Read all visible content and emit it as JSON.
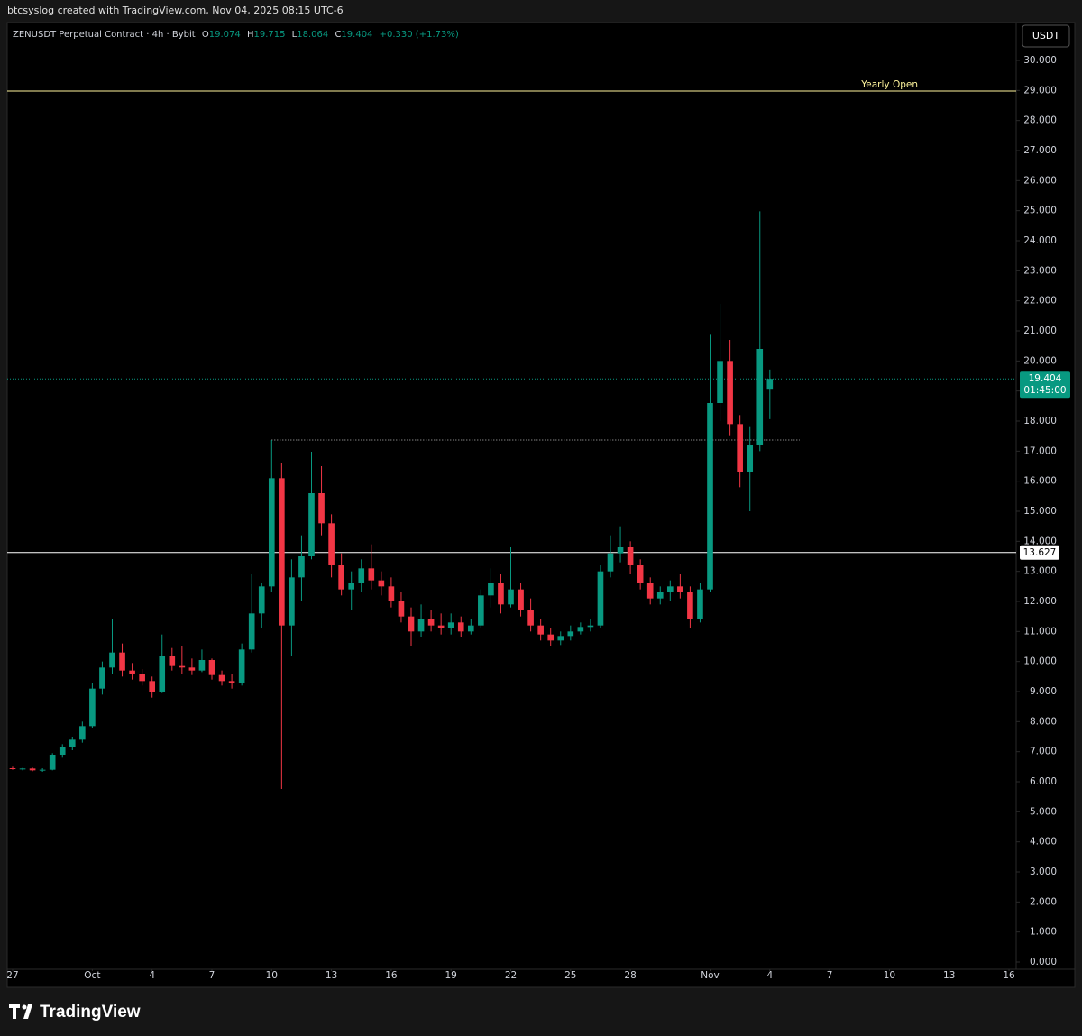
{
  "header": {
    "caption": "btcsyslog created with TradingView.com, Nov 04, 2025 08:15 UTC-6"
  },
  "footer": {
    "logo": "TradingView"
  },
  "chart_data": {
    "type": "candlestick",
    "symbol": "ZENUSDT Perpetual Contract · 4h · Bybit",
    "currency": "USDT",
    "legend": {
      "labels": [
        "O",
        "H",
        "L",
        "C"
      ],
      "values": [
        19.074,
        19.715,
        18.064,
        19.404
      ],
      "change": "+0.330 (+1.73%)"
    },
    "up_color": "#089981",
    "down_color": "#f23645",
    "grid": false,
    "x": [
      "2025-09-27 00:00",
      "2025-09-27 12:00",
      "2025-09-28 00:00",
      "2025-09-28 12:00",
      "2025-09-29 00:00",
      "2025-09-29 12:00",
      "2025-09-30 00:00",
      "2025-09-30 12:00",
      "2025-10-01 00:00",
      "2025-10-01 12:00",
      "2025-10-02 00:00",
      "2025-10-02 12:00",
      "2025-10-03 00:00",
      "2025-10-03 12:00",
      "2025-10-04 00:00",
      "2025-10-04 12:00",
      "2025-10-05 00:00",
      "2025-10-05 12:00",
      "2025-10-06 00:00",
      "2025-10-06 12:00",
      "2025-10-07 00:00",
      "2025-10-07 12:00",
      "2025-10-08 00:00",
      "2025-10-08 12:00",
      "2025-10-09 00:00",
      "2025-10-09 12:00",
      "2025-10-10 00:00",
      "2025-10-10 12:00",
      "2025-10-11 00:00",
      "2025-10-11 12:00",
      "2025-10-12 00:00",
      "2025-10-12 12:00",
      "2025-10-13 00:00",
      "2025-10-13 12:00",
      "2025-10-14 00:00",
      "2025-10-14 12:00",
      "2025-10-15 00:00",
      "2025-10-15 12:00",
      "2025-10-16 00:00",
      "2025-10-16 12:00",
      "2025-10-17 00:00",
      "2025-10-17 12:00",
      "2025-10-18 00:00",
      "2025-10-18 12:00",
      "2025-10-19 00:00",
      "2025-10-19 12:00",
      "2025-10-20 00:00",
      "2025-10-20 12:00",
      "2025-10-21 00:00",
      "2025-10-21 12:00",
      "2025-10-22 00:00",
      "2025-10-22 12:00",
      "2025-10-23 00:00",
      "2025-10-23 12:00",
      "2025-10-24 00:00",
      "2025-10-24 12:00",
      "2025-10-25 00:00",
      "2025-10-25 12:00",
      "2025-10-26 00:00",
      "2025-10-26 12:00",
      "2025-10-27 00:00",
      "2025-10-27 12:00",
      "2025-10-28 00:00",
      "2025-10-28 12:00",
      "2025-10-29 00:00",
      "2025-10-29 12:00",
      "2025-10-30 00:00",
      "2025-10-30 12:00",
      "2025-10-31 00:00",
      "2025-10-31 12:00",
      "2025-11-01 00:00",
      "2025-11-01 12:00",
      "2025-11-02 00:00",
      "2025-11-02 12:00",
      "2025-11-03 00:00",
      "2025-11-03 12:00",
      "2025-11-04 00:00"
    ],
    "open": [
      6.45,
      6.42,
      6.44,
      6.38,
      6.4,
      6.9,
      7.15,
      7.4,
      7.85,
      9.1,
      9.8,
      10.3,
      9.7,
      9.6,
      9.35,
      9.0,
      10.2,
      9.85,
      9.8,
      9.7,
      10.05,
      9.55,
      9.35,
      9.3,
      10.4,
      11.6,
      12.5,
      16.1,
      11.2,
      12.8,
      13.5,
      15.6,
      14.6,
      13.2,
      12.4,
      12.6,
      13.1,
      12.7,
      12.5,
      12.0,
      11.5,
      11.0,
      11.4,
      11.2,
      11.1,
      11.3,
      11.0,
      11.2,
      12.2,
      12.6,
      11.9,
      12.4,
      11.7,
      11.2,
      10.9,
      10.7,
      10.85,
      11.0,
      11.15,
      11.2,
      13.0,
      13.6,
      13.8,
      13.2,
      12.6,
      12.1,
      12.3,
      12.5,
      12.3,
      11.4,
      12.4,
      18.6,
      20.0,
      17.9,
      16.3,
      17.2,
      19.074
    ],
    "high": [
      6.5,
      6.46,
      6.47,
      6.45,
      6.95,
      7.25,
      7.5,
      8.0,
      9.3,
      10.0,
      11.4,
      10.6,
      9.95,
      9.75,
      9.5,
      10.9,
      10.45,
      10.5,
      10.1,
      10.4,
      10.1,
      9.7,
      9.6,
      10.6,
      12.9,
      12.6,
      17.37,
      16.6,
      13.4,
      14.2,
      16.98,
      16.5,
      14.9,
      13.6,
      13.0,
      13.4,
      13.9,
      13.0,
      12.8,
      12.3,
      11.8,
      11.9,
      11.7,
      11.6,
      11.6,
      11.5,
      11.4,
      12.4,
      13.1,
      12.9,
      13.8,
      12.6,
      12.1,
      11.4,
      11.1,
      11.0,
      11.2,
      11.3,
      11.4,
      13.2,
      14.2,
      14.5,
      14.0,
      13.4,
      12.8,
      12.5,
      12.7,
      12.9,
      12.5,
      12.6,
      20.9,
      21.9,
      20.7,
      18.2,
      17.8,
      24.98,
      19.715
    ],
    "low": [
      6.4,
      6.38,
      6.35,
      6.33,
      6.38,
      6.8,
      7.05,
      7.3,
      7.8,
      8.9,
      9.6,
      9.5,
      9.4,
      9.2,
      8.8,
      8.95,
      9.7,
      9.6,
      9.55,
      9.65,
      9.4,
      9.2,
      9.1,
      9.2,
      10.3,
      11.1,
      12.3,
      5.76,
      10.2,
      12.0,
      13.4,
      14.2,
      12.8,
      12.2,
      11.7,
      12.3,
      12.4,
      12.2,
      11.8,
      11.3,
      10.5,
      10.8,
      11.0,
      10.9,
      10.9,
      10.8,
      10.9,
      11.1,
      11.8,
      11.6,
      11.8,
      11.5,
      11.0,
      10.7,
      10.5,
      10.55,
      10.7,
      10.9,
      11.0,
      11.1,
      12.8,
      13.3,
      12.9,
      12.4,
      11.9,
      11.9,
      12.0,
      12.1,
      11.1,
      11.3,
      12.3,
      18.0,
      17.5,
      15.8,
      15.0,
      17.0,
      18.064
    ],
    "close": [
      6.42,
      6.44,
      6.38,
      6.4,
      6.9,
      7.15,
      7.4,
      7.85,
      9.1,
      9.8,
      10.3,
      9.7,
      9.6,
      9.35,
      9.0,
      10.2,
      9.85,
      9.8,
      9.7,
      10.05,
      9.55,
      9.35,
      9.3,
      10.4,
      11.6,
      12.5,
      16.1,
      11.2,
      12.8,
      13.5,
      15.6,
      14.6,
      13.2,
      12.4,
      12.6,
      13.1,
      12.7,
      12.5,
      12.0,
      11.5,
      11.0,
      11.4,
      11.2,
      11.1,
      11.3,
      11.0,
      11.2,
      12.2,
      12.6,
      11.9,
      12.4,
      11.7,
      11.2,
      10.9,
      10.7,
      10.85,
      11.0,
      11.15,
      11.2,
      13.0,
      13.6,
      13.8,
      13.2,
      12.6,
      12.1,
      12.3,
      12.5,
      12.3,
      11.4,
      12.4,
      18.6,
      20.0,
      17.9,
      16.3,
      17.2,
      20.4,
      19.404
    ],
    "xlim": [
      "2025-09-26 17:30",
      "2025-11-16 08:40"
    ],
    "xticks": [
      {
        "value": "2025-09-27 00:00",
        "label": "27"
      },
      {
        "value": "2025-10-01 00:00",
        "label": "Oct"
      },
      {
        "value": "2025-10-04 00:00",
        "label": "4"
      },
      {
        "value": "2025-10-07 00:00",
        "label": "7"
      },
      {
        "value": "2025-10-10 00:00",
        "label": "10"
      },
      {
        "value": "2025-10-13 00:00",
        "label": "13"
      },
      {
        "value": "2025-10-16 00:00",
        "label": "16"
      },
      {
        "value": "2025-10-19 00:00",
        "label": "19"
      },
      {
        "value": "2025-10-22 00:00",
        "label": "22"
      },
      {
        "value": "2025-10-25 00:00",
        "label": "25"
      },
      {
        "value": "2025-10-28 00:00",
        "label": "28"
      },
      {
        "value": "2025-11-01 00:00",
        "label": "Nov"
      },
      {
        "value": "2025-11-04 00:00",
        "label": "4"
      },
      {
        "value": "2025-11-07 00:00",
        "label": "7"
      },
      {
        "value": "2025-11-10 00:00",
        "label": "10"
      },
      {
        "value": "2025-11-13 00:00",
        "label": "13"
      },
      {
        "value": "2025-11-16 00:00",
        "label": "16"
      }
    ],
    "ylim": [
      -0.24,
      31.26
    ],
    "yticks": [
      {
        "value": 0,
        "label": "0.000"
      },
      {
        "value": 1,
        "label": "1.000"
      },
      {
        "value": 2,
        "label": "2.000"
      },
      {
        "value": 3,
        "label": "3.000"
      },
      {
        "value": 4,
        "label": "4.000"
      },
      {
        "value": 5,
        "label": "5.000"
      },
      {
        "value": 6,
        "label": "6.000"
      },
      {
        "value": 7,
        "label": "7.000"
      },
      {
        "value": 8,
        "label": "8.000"
      },
      {
        "value": 9,
        "label": "9.000"
      },
      {
        "value": 10,
        "label": "10.000"
      },
      {
        "value": 11,
        "label": "11.000"
      },
      {
        "value": 12,
        "label": "12.000"
      },
      {
        "value": 13,
        "label": "13.000"
      },
      {
        "value": 14,
        "label": "14.000"
      },
      {
        "value": 15,
        "label": "15.000"
      },
      {
        "value": 16,
        "label": "16.000"
      },
      {
        "value": 17,
        "label": "17.000"
      },
      {
        "value": 18,
        "label": "18.000"
      },
      {
        "value": 19,
        "label": "19.000"
      },
      {
        "value": 20,
        "label": "20.000"
      },
      {
        "value": 21,
        "label": "21.000"
      },
      {
        "value": 22,
        "label": "22.000"
      },
      {
        "value": 23,
        "label": "23.000"
      },
      {
        "value": 24,
        "label": "24.000"
      },
      {
        "value": 25,
        "label": "25.000"
      },
      {
        "value": 26,
        "label": "26.000"
      },
      {
        "value": 27,
        "label": "27.000"
      },
      {
        "value": 28,
        "label": "28.000"
      },
      {
        "value": 29,
        "label": "29.000"
      },
      {
        "value": 30,
        "label": "30.000"
      }
    ],
    "yearly_open": {
      "label": "Yearly Open",
      "value": 28.98,
      "color": "#fff59d"
    },
    "horizontal_line": {
      "value": 13.627,
      "color": "#ffffff"
    },
    "ray": {
      "value": 17.37,
      "start": "2025-10-10 00:00",
      "end": "2025-11-05 12:00"
    },
    "last_price": {
      "value": 19.404,
      "countdown": "01:45:00",
      "color": "#089981"
    }
  }
}
